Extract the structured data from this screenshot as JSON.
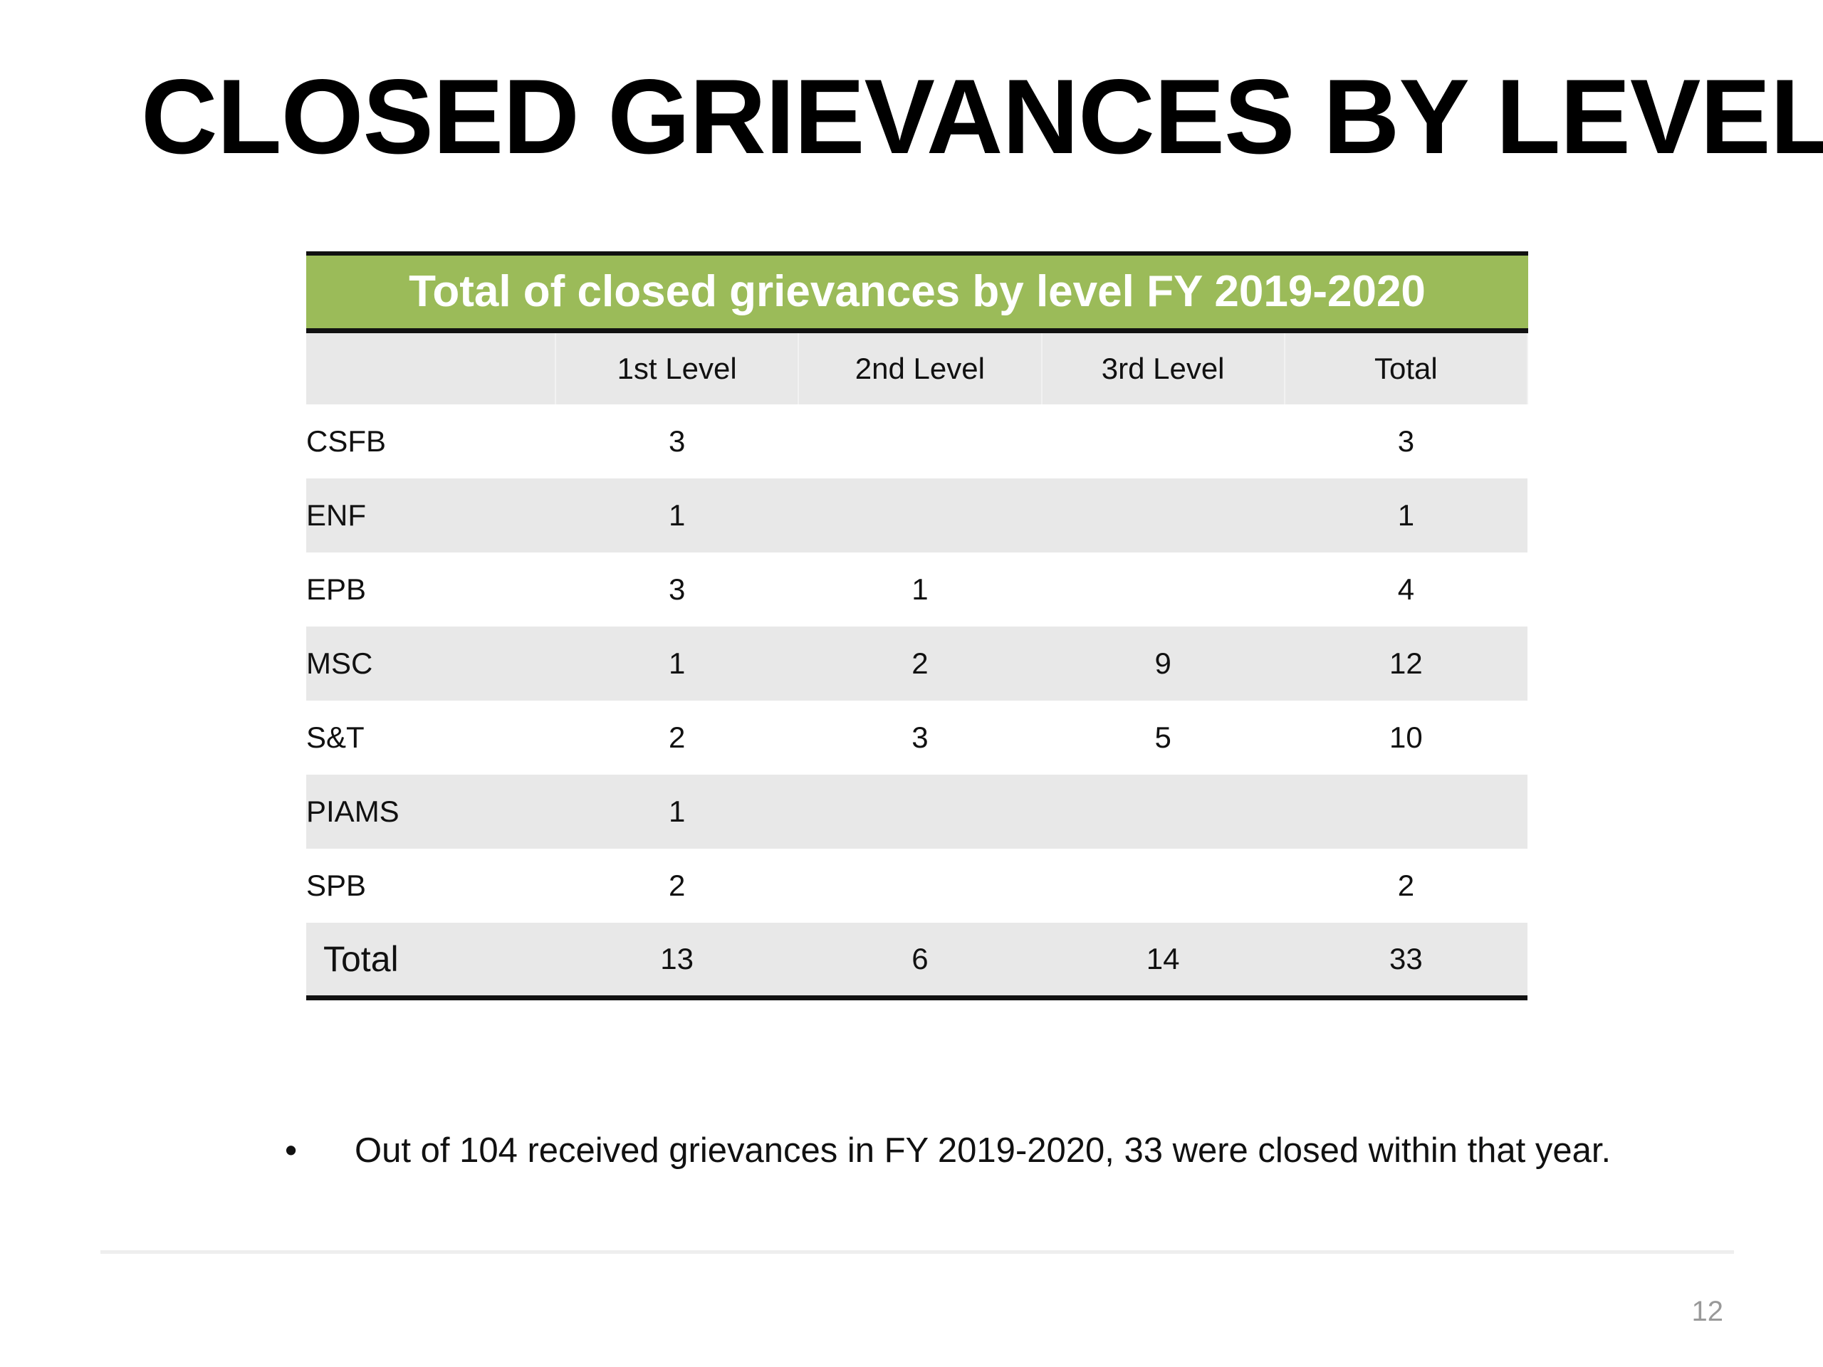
{
  "title": "CLOSED GRIEVANCES BY LEVEL",
  "table": {
    "caption": "Total of closed grievances by level FY 2019-2020",
    "columns": [
      "1st Level",
      "2nd Level",
      "3rd Level",
      "Total"
    ],
    "rows": [
      [
        "CSFB",
        3,
        null,
        null,
        3
      ],
      [
        "ENF",
        1,
        null,
        null,
        1
      ],
      [
        "EPB",
        3,
        1,
        null,
        4
      ],
      [
        "MSC",
        1,
        2,
        9,
        12
      ],
      [
        "S&T",
        2,
        3,
        5,
        10
      ],
      [
        "PIAMS",
        1,
        null,
        null,
        null
      ],
      [
        "SPB",
        2,
        null,
        null,
        2
      ],
      [
        "Total",
        13,
        6,
        14,
        33
      ]
    ]
  },
  "bullets": [
    "Out of 104 received grievances in FY 2019-2020, 33 were closed within that year."
  ],
  "page_number": 12
}
